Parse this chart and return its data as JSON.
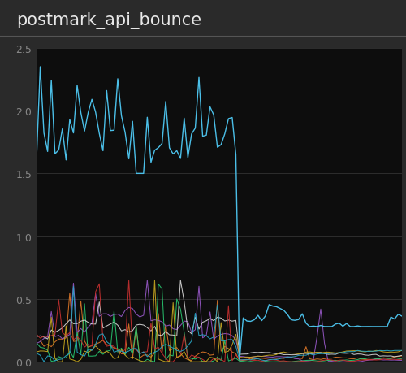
{
  "title": "postmark_api_bounce",
  "bg_color": "#2a2a2a",
  "plot_bg_color": "#0d0d0d",
  "title_color": "#e8e8e8",
  "tick_color": "#888888",
  "grid_color": "#2e2e2e",
  "ylim": [
    0,
    2.5
  ],
  "yticks": [
    0,
    0.5,
    1.0,
    1.5,
    2.0,
    2.5
  ],
  "n_points": 100,
  "migration_point": 55,
  "title_fontsize": 15,
  "tick_fontsize": 9
}
